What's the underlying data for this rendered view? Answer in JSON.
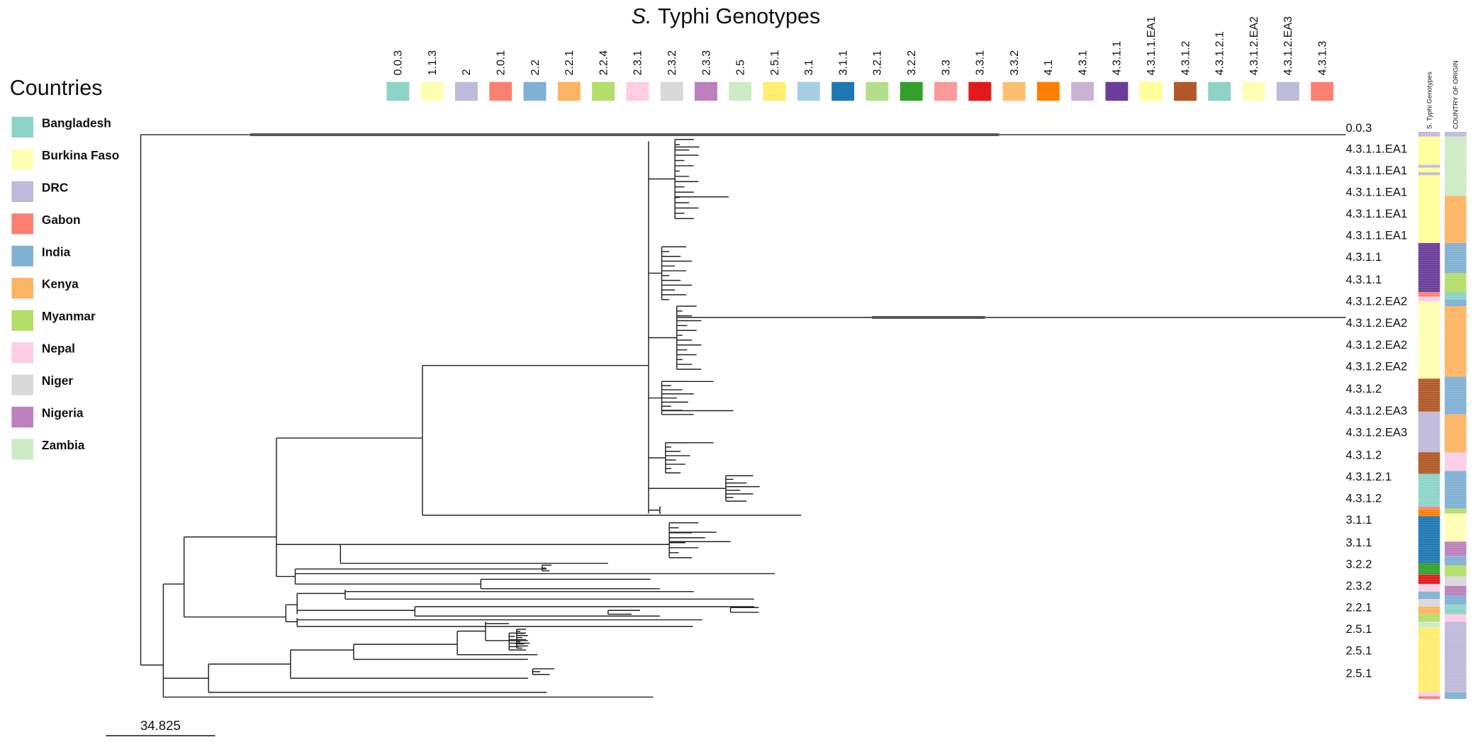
{
  "title": {
    "italic": "S.",
    "text": "Typhi Genotypes"
  },
  "genotype_legend": [
    {
      "label": "0.0.3",
      "color": "#8dd3c7"
    },
    {
      "label": "1.1.3",
      "color": "#ffffb3"
    },
    {
      "label": "2",
      "color": "#bebada"
    },
    {
      "label": "2.0.1",
      "color": "#fb8072"
    },
    {
      "label": "2.2",
      "color": "#80b1d3"
    },
    {
      "label": "2.2.1",
      "color": "#fdb462"
    },
    {
      "label": "2.2.4",
      "color": "#b3de69"
    },
    {
      "label": "2.3.1",
      "color": "#fccde5"
    },
    {
      "label": "2.3.2",
      "color": "#d9d9d9"
    },
    {
      "label": "2.3.3",
      "color": "#bc80bd"
    },
    {
      "label": "2.5",
      "color": "#ccebc5"
    },
    {
      "label": "2.5.1",
      "color": "#ffed6f"
    },
    {
      "label": "3.1",
      "color": "#a6cee3"
    },
    {
      "label": "3.1.1",
      "color": "#1f78b4"
    },
    {
      "label": "3.2.1",
      "color": "#b2df8a"
    },
    {
      "label": "3.2.2",
      "color": "#33a02c"
    },
    {
      "label": "3.3",
      "color": "#fb9a99"
    },
    {
      "label": "3.3.1",
      "color": "#e31a1c"
    },
    {
      "label": "3.3.2",
      "color": "#fdbf6f"
    },
    {
      "label": "4.1",
      "color": "#ff7f00"
    },
    {
      "label": "4.3.1",
      "color": "#cab2d6"
    },
    {
      "label": "4.3.1.1",
      "color": "#6a3d9a"
    },
    {
      "label": "4.3.1.1.EA1",
      "color": "#ffff99"
    },
    {
      "label": "4.3.1.2",
      "color": "#b15928"
    },
    {
      "label": "4.3.1.2.1",
      "color": "#8dd3c7"
    },
    {
      "label": "4.3.1.2.EA2",
      "color": "#ffffb3"
    },
    {
      "label": "4.3.1.2.EA3",
      "color": "#bebada"
    },
    {
      "label": "4.3.1.3",
      "color": "#fb8072"
    }
  ],
  "countries": {
    "title": "Countries",
    "items": [
      {
        "label": "Bangladesh",
        "color": "#8dd3c7"
      },
      {
        "label": "Burkina Faso",
        "color": "#ffffb3"
      },
      {
        "label": "DRC",
        "color": "#bebada"
      },
      {
        "label": "Gabon",
        "color": "#fb8072"
      },
      {
        "label": "India",
        "color": "#80b1d3"
      },
      {
        "label": "Kenya",
        "color": "#fdb462"
      },
      {
        "label": "Myanmar",
        "color": "#b3de69"
      },
      {
        "label": "Nepal",
        "color": "#fccde5"
      },
      {
        "label": "Niger",
        "color": "#d9d9d9"
      },
      {
        "label": "Nigeria",
        "color": "#bc80bd"
      },
      {
        "label": "Zambia",
        "color": "#ccebc5"
      }
    ]
  },
  "tips": [
    "0.0.3",
    "4.3.1.1.EA1",
    "4.3.1.1.EA1",
    "4.3.1.1.EA1",
    "4.3.1.1.EA1",
    "4.3.1.1.EA1",
    "4.3.1.1",
    "4.3.1.1",
    "4.3.1.2.EA2",
    "4.3.1.2.EA2",
    "4.3.1.2.EA2",
    "4.3.1.2.EA2",
    "4.3.1.2",
    "4.3.1.2.EA3",
    "4.3.1.2.EA3",
    "4.3.1.2",
    "4.3.1.2.1",
    "4.3.1.2",
    "3.1.1",
    "3.1.1",
    "3.2.2",
    "2.3.2",
    "2.2.1",
    "2.5.1",
    "2.5.1",
    "2.5.1"
  ],
  "columns": [
    "S. Typhi Genotypes",
    "COUNTRY OF ORIGIN"
  ],
  "scale_bar": "34.825"
}
